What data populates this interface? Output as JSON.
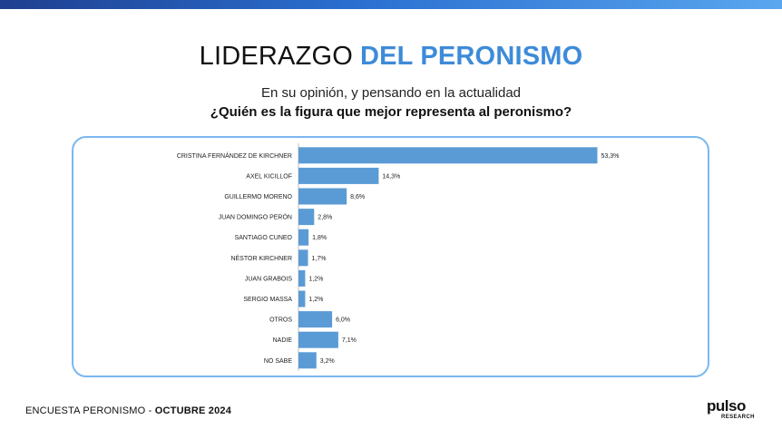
{
  "header": {
    "title_part1": "LIDERAZGO",
    "title_part2": "DEL PERONISMO",
    "subtitle": "En su opinión, y pensando en la actualidad",
    "question": "¿Quién es la figura que mejor representa al peronismo?"
  },
  "colors": {
    "bar": "#5b9bd5",
    "accent": "#3d8bd9",
    "border": "#7ab8ef"
  },
  "chart_data": {
    "type": "bar",
    "orientation": "horizontal",
    "categories": [
      "CRISTINA FERNÁNDEZ DE KIRCHNER",
      "AXEL KICILLOF",
      "GUILLERMO MORENO",
      "JUAN DOMINGO PERÓN",
      "SANTIAGO CUNEO",
      "NÉSTOR KIRCHNER",
      "JUAN GRABOIS",
      "SERGIO MASSA",
      "OTROS",
      "NADIE",
      "NO SABE"
    ],
    "values": [
      53.3,
      14.3,
      8.6,
      2.8,
      1.8,
      1.7,
      1.2,
      1.2,
      6.0,
      7.1,
      3.2
    ],
    "value_labels": [
      "53,3%",
      "14,3%",
      "8,6%",
      "2,8%",
      "1,8%",
      "1,7%",
      "1,2%",
      "1,2%",
      "6,0%",
      "7,1%",
      "3,2%"
    ],
    "xlim": [
      0,
      55
    ],
    "grid": false,
    "legend": "none"
  },
  "footer": {
    "survey": "ENCUESTA PERONISMO - ",
    "date": "OCTUBRE 2024"
  },
  "logo": {
    "word": "pulso",
    "sub": "RESEARCH"
  }
}
